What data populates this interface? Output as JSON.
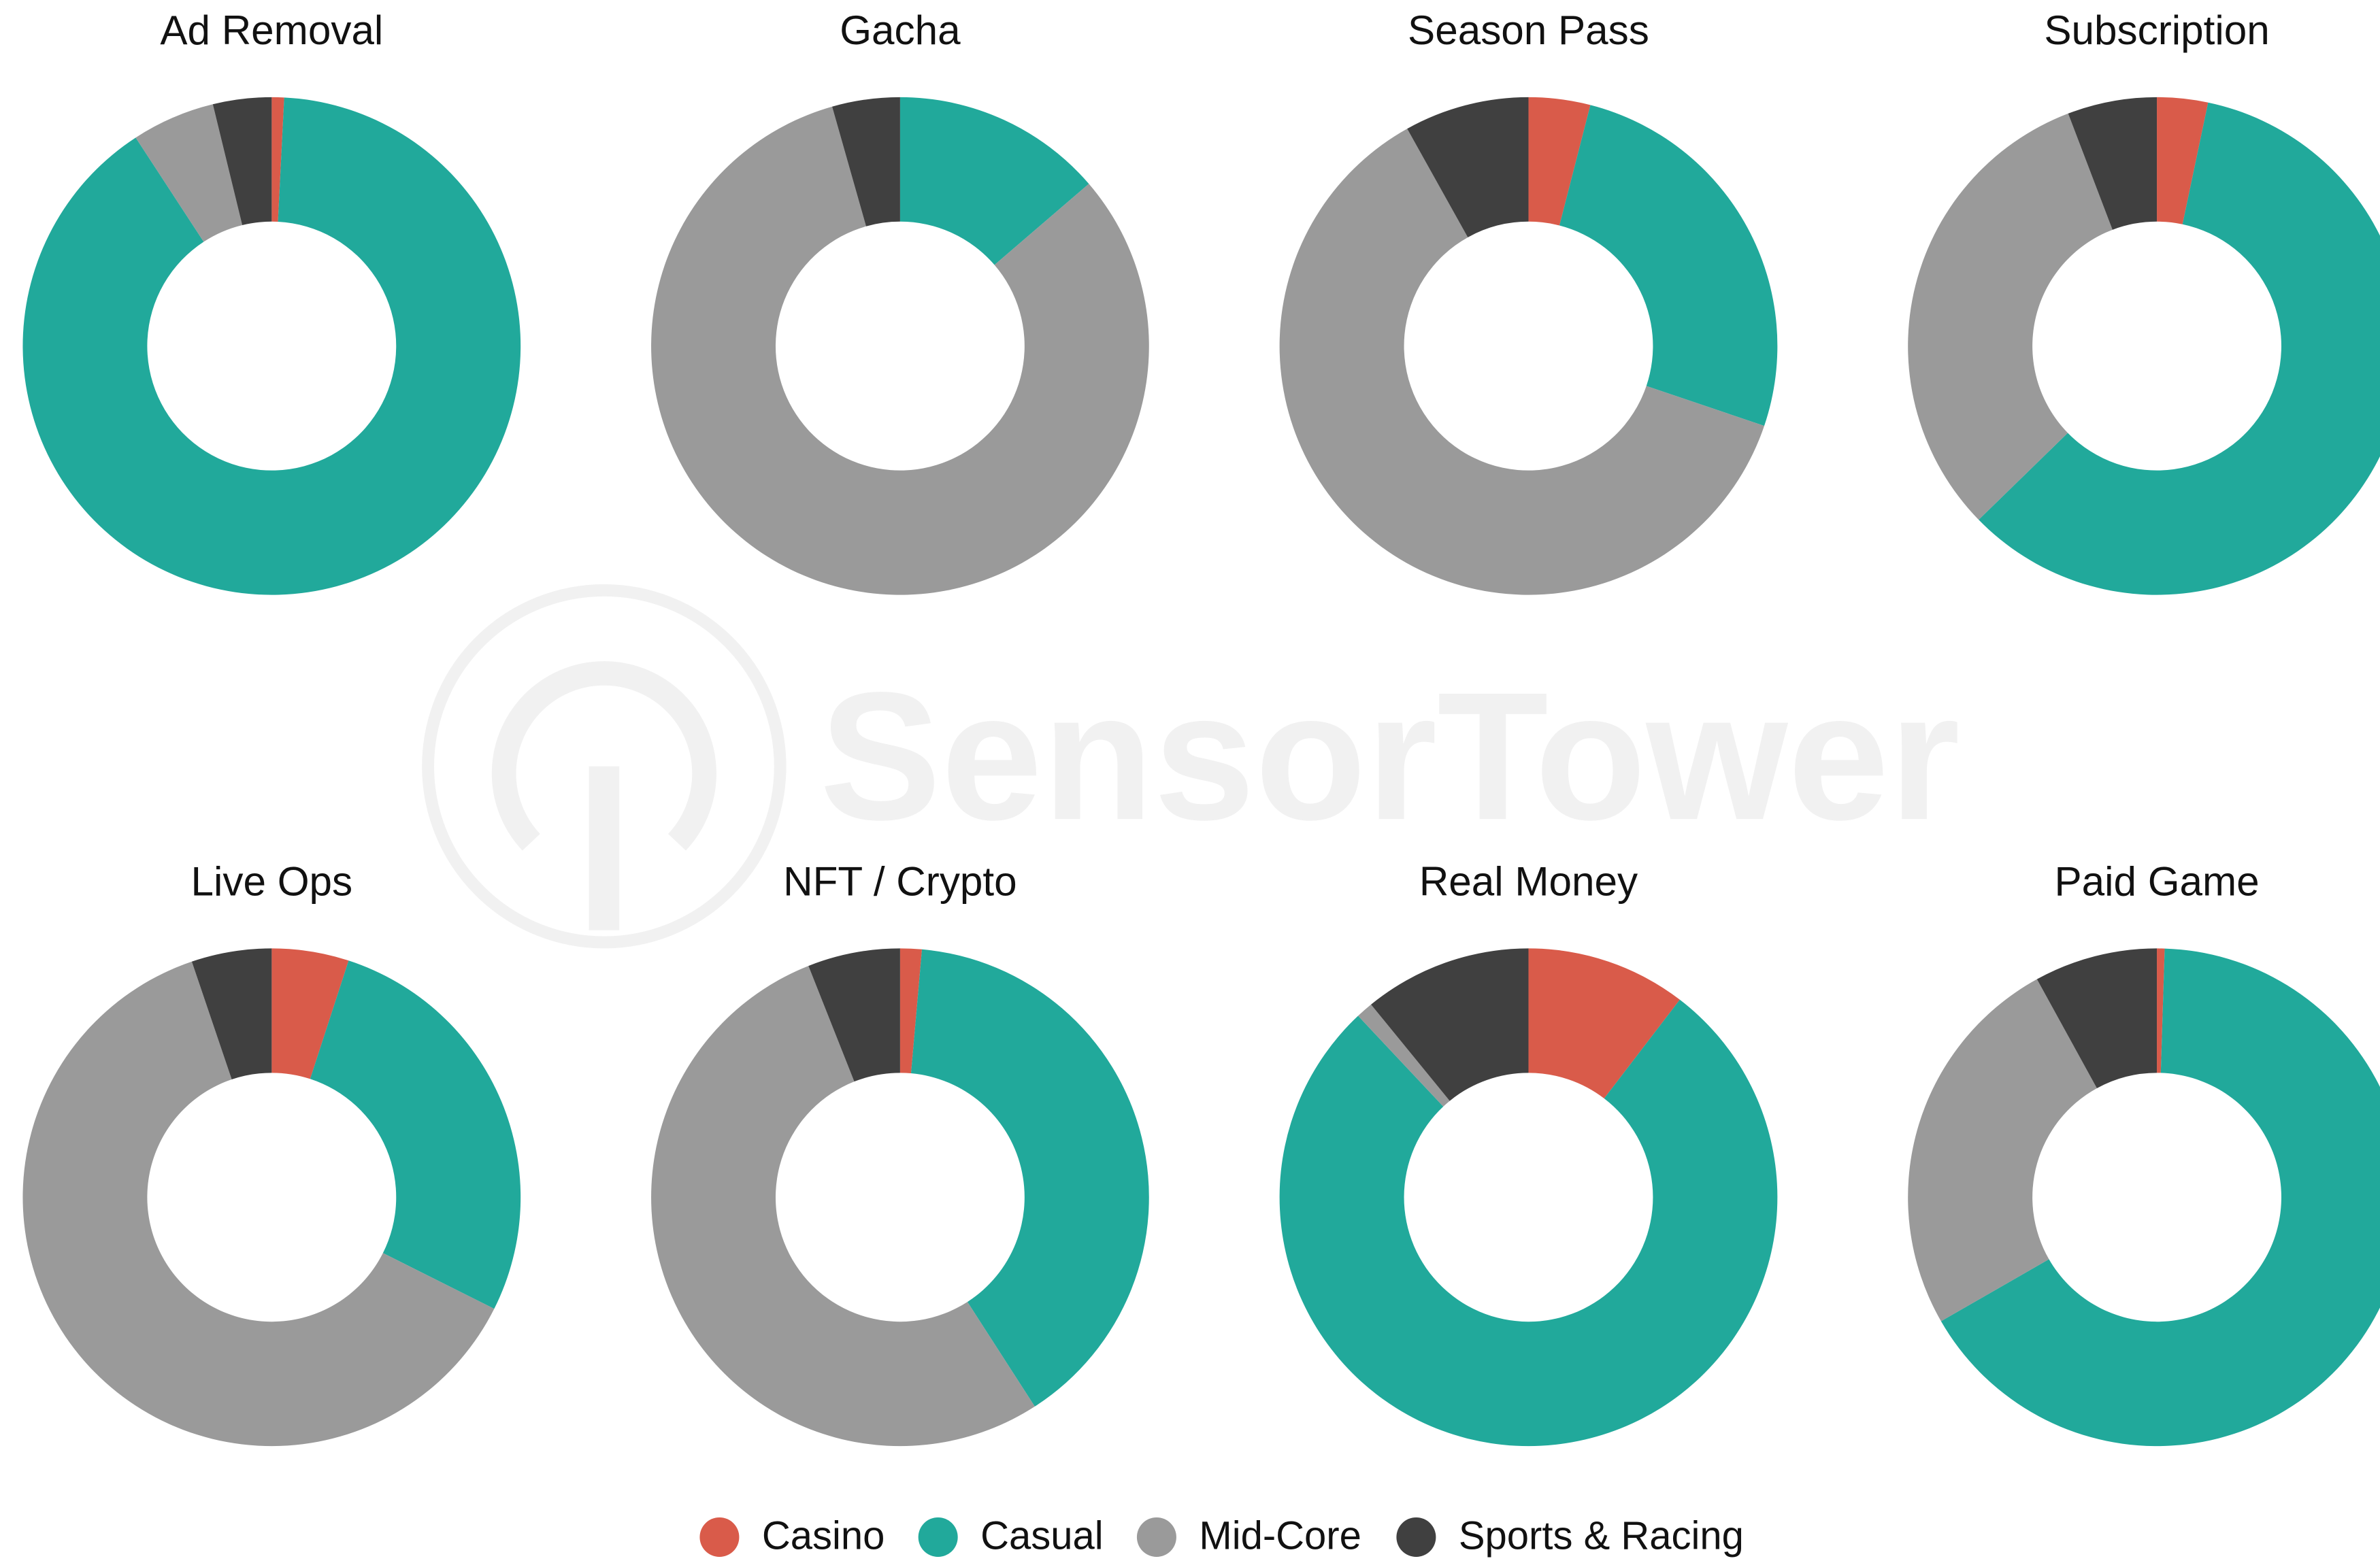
{
  "watermark": "SensorTower",
  "chart_data": [
    {
      "type": "pie",
      "title": "Ad Removal",
      "categories": [
        "Casino",
        "Casual",
        "Mid-Core",
        "Sports & Racing"
      ],
      "colors": [
        "#d95b4a",
        "#21a99b",
        "#9a9a9a",
        "#404040"
      ],
      "values": [
        0.8,
        90.0,
        5.4,
        3.8
      ]
    },
    {
      "type": "pie",
      "title": "Gacha",
      "categories": [
        "Casino",
        "Casual",
        "Mid-Core",
        "Sports & Racing"
      ],
      "colors": [
        "#d95b4a",
        "#21a99b",
        "#9a9a9a",
        "#404040"
      ],
      "values": [
        0,
        13.7,
        81.9,
        4.4
      ]
    },
    {
      "type": "pie",
      "title": "Season Pass",
      "categories": [
        "Casino",
        "Casual",
        "Mid-Core",
        "Sports & Racing"
      ],
      "colors": [
        "#d95b4a",
        "#21a99b",
        "#9a9a9a",
        "#404040"
      ],
      "values": [
        4.0,
        26.2,
        61.7,
        8.1
      ]
    },
    {
      "type": "pie",
      "title": "Subscription",
      "categories": [
        "Casino",
        "Casual",
        "Mid-Core",
        "Sports & Racing"
      ],
      "colors": [
        "#d95b4a",
        "#21a99b",
        "#9a9a9a",
        "#404040"
      ],
      "values": [
        3.3,
        59.4,
        31.5,
        5.8
      ]
    },
    {
      "type": "pie",
      "title": "Live Ops",
      "categories": [
        "Casino",
        "Casual",
        "Mid-Core",
        "Sports & Racing"
      ],
      "colors": [
        "#d95b4a",
        "#21a99b",
        "#9a9a9a",
        "#404040"
      ],
      "values": [
        5.0,
        27.4,
        62.4,
        5.2
      ]
    },
    {
      "type": "pie",
      "title": "NFT / Crypto",
      "categories": [
        "Casino",
        "Casual",
        "Mid-Core",
        "Sports & Racing"
      ],
      "colors": [
        "#d95b4a",
        "#21a99b",
        "#9a9a9a",
        "#404040"
      ],
      "values": [
        1.4,
        39.5,
        53.1,
        6.0
      ]
    },
    {
      "type": "pie",
      "title": "Real Money",
      "categories": [
        "Casino",
        "Casual",
        "Mid-Core",
        "Sports & Racing"
      ],
      "colors": [
        "#d95b4a",
        "#21a99b",
        "#9a9a9a",
        "#404040"
      ],
      "values": [
        10.4,
        77.6,
        1.1,
        10.9
      ]
    },
    {
      "type": "pie",
      "title": "Paid Game",
      "categories": [
        "Casino",
        "Casual",
        "Mid-Core",
        "Sports & Racing"
      ],
      "colors": [
        "#d95b4a",
        "#21a99b",
        "#9a9a9a",
        "#404040"
      ],
      "values": [
        0.5,
        66.2,
        25.3,
        8.0
      ]
    }
  ]
}
